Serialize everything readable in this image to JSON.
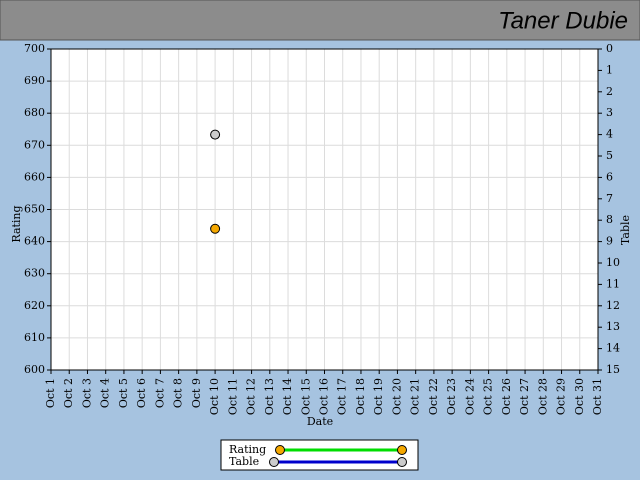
{
  "header": {
    "title": "Taner Dubie"
  },
  "chart_data": {
    "type": "scatter",
    "x_label": "Date",
    "y_label": "Rating",
    "y2_label": "Table",
    "categories": [
      "Oct 1",
      "Oct 2",
      "Oct 3",
      "Oct 4",
      "Oct 5",
      "Oct 6",
      "Oct 7",
      "Oct 8",
      "Oct 9",
      "Oct 10",
      "Oct 11",
      "Oct 12",
      "Oct 13",
      "Oct 14",
      "Oct 15",
      "Oct 16",
      "Oct 17",
      "Oct 18",
      "Oct 19",
      "Oct 20",
      "Oct 21",
      "Oct 22",
      "Oct 23",
      "Oct 24",
      "Oct 25",
      "Oct 26",
      "Oct 27",
      "Oct 28",
      "Oct 29",
      "Oct 30",
      "Oct 31"
    ],
    "ylim": [
      600,
      700
    ],
    "yticks": [
      600,
      610,
      620,
      630,
      640,
      650,
      660,
      670,
      680,
      690,
      700
    ],
    "y2lim": [
      0,
      15
    ],
    "y2_inverted": true,
    "y2ticks": [
      0,
      1,
      2,
      3,
      4,
      5,
      6,
      7,
      8,
      9,
      10,
      11,
      12,
      13,
      14,
      15
    ],
    "grid": true,
    "series": [
      {
        "name": "Rating",
        "color": "#f5a800",
        "line_color": "#00dd00",
        "values": [
          null,
          null,
          null,
          null,
          null,
          null,
          null,
          null,
          null,
          644,
          null,
          null,
          null,
          null,
          null,
          null,
          null,
          null,
          null,
          null,
          null,
          null,
          null,
          null,
          null,
          null,
          null,
          null,
          null,
          null,
          null
        ]
      },
      {
        "name": "Table",
        "axis": "y2",
        "color": "#cccccc",
        "line_color": "#0000cc",
        "values": [
          null,
          null,
          null,
          null,
          null,
          null,
          null,
          null,
          null,
          4,
          null,
          null,
          null,
          null,
          null,
          null,
          null,
          null,
          null,
          null,
          null,
          null,
          null,
          null,
          null,
          null,
          null,
          null,
          null,
          null,
          null
        ]
      }
    ]
  }
}
